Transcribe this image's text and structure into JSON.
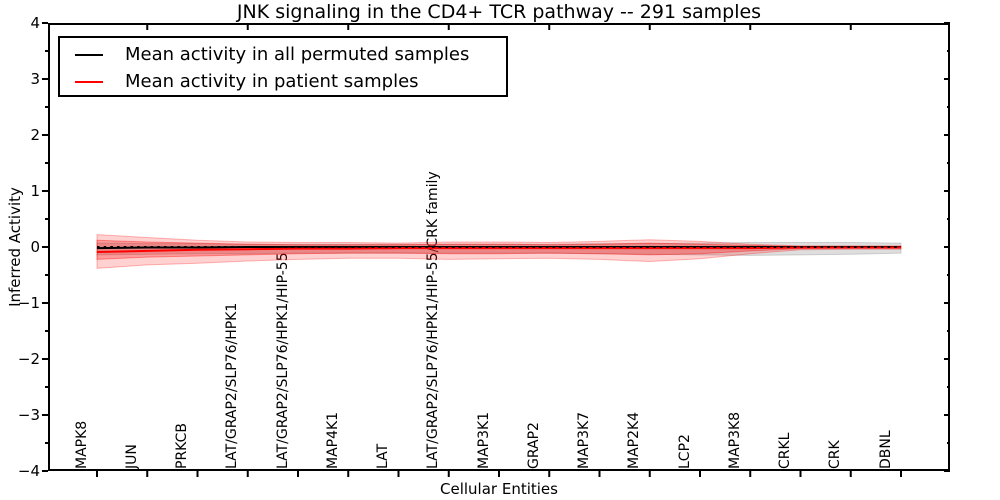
{
  "title": "JNK signaling in the CD4+ TCR pathway -- 291 samples",
  "axes": {
    "ylabel": "Inferred Activity",
    "xlabel": "Cellular Entities",
    "yticks": [
      "4",
      "3",
      "2",
      "1",
      "0",
      "−1",
      "−2",
      "−3",
      "−4"
    ],
    "ylim": [
      -4,
      4
    ],
    "frame_color": "#000000"
  },
  "legend": {
    "items": [
      {
        "label": "Mean activity in all permuted samples",
        "color": "#000000"
      },
      {
        "label": "Mean activity in patient samples",
        "color": "#ff0000"
      }
    ]
  },
  "chart_data": {
    "type": "line",
    "title": "JNK signaling in the CD4+ TCR pathway -- 291 samples",
    "xlabel": "Cellular Entities",
    "ylabel": "Inferred Activity",
    "ylim": [
      -4,
      4
    ],
    "legend_position": "upper left",
    "grid": false,
    "categories": [
      "MAPK8",
      "JUN",
      "PRKCB",
      "LAT/GRAP2/SLP76/HPK1",
      "LAT/GRAP2/SLP76/HPK1/HIP-55",
      "MAP4K1",
      "LAT",
      "LAT/GRAP2/SLP76/HPK1/HIP-55/CRK family",
      "MAP3K1",
      "GRAP2",
      "MAP3K7",
      "MAP2K4",
      "LCP2",
      "MAP3K8",
      "CRKL",
      "CRK",
      "DBNL"
    ],
    "series": [
      {
        "name": "Mean activity in all permuted samples",
        "color": "#000000",
        "values": [
          -0.02,
          -0.01,
          -0.01,
          0,
          0,
          0,
          0,
          0,
          0,
          0,
          0,
          0,
          0,
          0,
          0,
          0,
          0
        ]
      },
      {
        "name": "Mean activity in patient samples",
        "color": "#ff0000",
        "values": [
          -0.09,
          -0.07,
          -0.05,
          -0.04,
          -0.03,
          -0.03,
          -0.02,
          -0.02,
          -0.02,
          -0.02,
          -0.02,
          -0.02,
          -0.02,
          -0.02,
          -0.01,
          -0.01,
          -0.01
        ]
      }
    ],
    "zero_line": {
      "value": 0.0,
      "style": "dotted",
      "color": "#000000"
    },
    "bands": [
      {
        "name": "permuted-samples-spread",
        "color": "#999999",
        "opacity": 0.32,
        "upper": [
          0.07,
          0.06,
          0.06,
          0.05,
          0.05,
          0.05,
          0.05,
          0.05,
          0.05,
          0.05,
          0.06,
          0.06,
          0.07,
          0.08,
          0.08,
          0.08,
          0.07
        ],
        "lower": [
          -0.14,
          -0.13,
          -0.12,
          -0.12,
          -0.11,
          -0.11,
          -0.11,
          -0.11,
          -0.11,
          -0.11,
          -0.12,
          -0.13,
          -0.14,
          -0.15,
          -0.14,
          -0.13,
          -0.11
        ]
      },
      {
        "name": "patient-samples-spread-outer",
        "color": "#ff0000",
        "opacity": 0.18,
        "upper": [
          0.22,
          0.17,
          0.12,
          0.09,
          0.08,
          0.08,
          0.07,
          0.09,
          0.09,
          0.08,
          0.1,
          0.13,
          0.1,
          0.05,
          0.02,
          0.02,
          0.02
        ],
        "lower": [
          -0.38,
          -0.32,
          -0.29,
          -0.25,
          -0.22,
          -0.2,
          -0.2,
          -0.22,
          -0.21,
          -0.2,
          -0.22,
          -0.26,
          -0.21,
          -0.12,
          -0.05,
          -0.04,
          -0.04
        ]
      },
      {
        "name": "patient-samples-spread-inner",
        "color": "#ff0000",
        "opacity": 0.26,
        "upper": [
          0.12,
          0.09,
          0.07,
          0.05,
          0.04,
          0.04,
          0.04,
          0.05,
          0.05,
          0.04,
          0.05,
          0.07,
          0.05,
          0.03,
          0.01,
          0.01,
          0.01
        ],
        "lower": [
          -0.22,
          -0.18,
          -0.16,
          -0.14,
          -0.12,
          -0.11,
          -0.11,
          -0.12,
          -0.12,
          -0.11,
          -0.12,
          -0.14,
          -0.12,
          -0.07,
          -0.03,
          -0.02,
          -0.02
        ]
      }
    ]
  }
}
